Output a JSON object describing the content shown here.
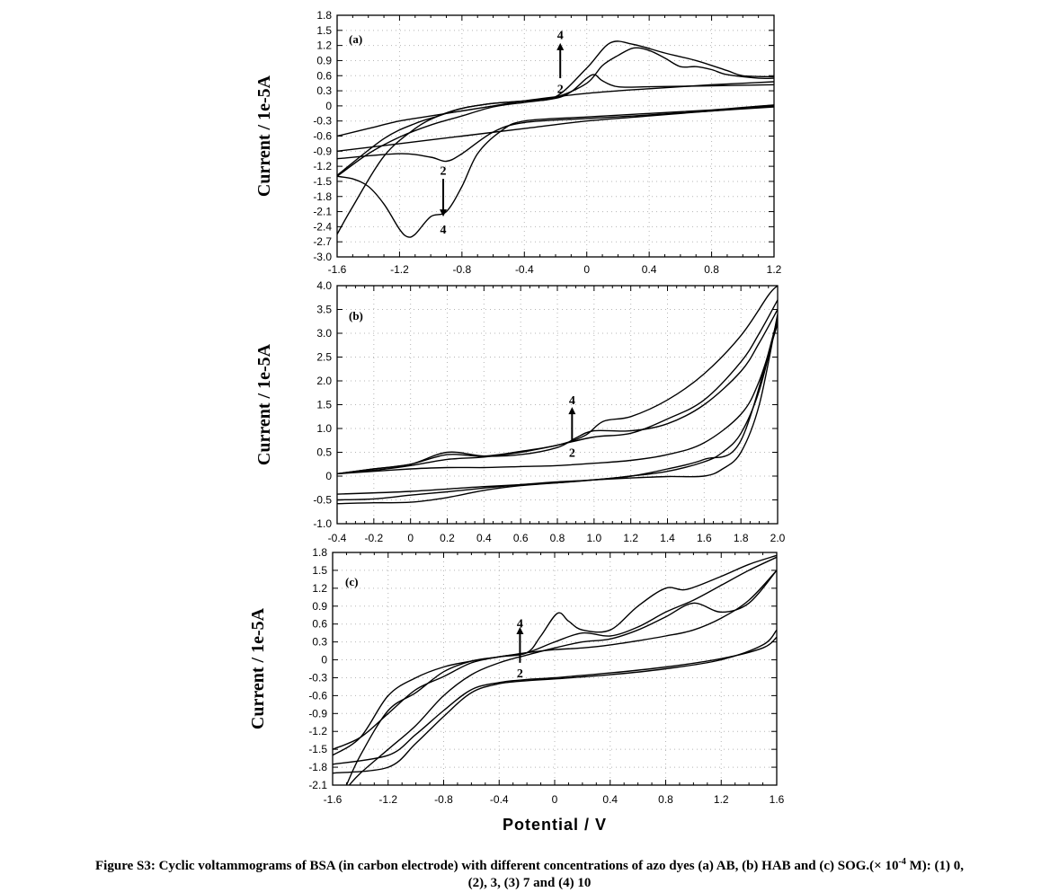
{
  "chart_data": [
    {
      "panel_label": "(a)",
      "type": "line",
      "ylabel": "Current / 1e-5A",
      "xlim": [
        -1.6,
        1.2
      ],
      "ylim": [
        -3.0,
        1.8
      ],
      "x_ticks": [
        -1.6,
        -1.2,
        -0.8,
        -0.4,
        0,
        0.4,
        0.8,
        1.2
      ],
      "x_tick_labels": [
        "-1.6",
        "-1.2",
        "-0.8",
        "-0.4",
        "0",
        "0.4",
        "0.8",
        "1.2"
      ],
      "y_ticks": [
        1.8,
        1.5,
        1.2,
        0.9,
        0.6,
        0.3,
        0,
        -0.3,
        -0.6,
        -0.9,
        -1.2,
        -1.5,
        -1.8,
        -2.1,
        -2.4,
        -2.7,
        -3.0
      ],
      "y_tick_labels": [
        "1.8",
        "1.5",
        "1.2",
        "0.9",
        "0.6",
        "0.3",
        "0",
        "-0.3",
        "-0.6",
        "-0.9",
        "-1.2",
        "-1.5",
        "-1.8",
        "-2.1",
        "-2.4",
        "-2.7",
        "-3.0"
      ],
      "grid": true,
      "annotations": [
        {
          "text": "4",
          "x": -0.17,
          "y": 1.42
        },
        {
          "text": "2",
          "x": -0.17,
          "y": 0.35
        },
        {
          "text": "2",
          "x": -0.92,
          "y": -1.28
        },
        {
          "text": "4",
          "x": -0.92,
          "y": -2.45
        }
      ],
      "arrows": [
        {
          "x": -0.17,
          "from": 0.55,
          "to": 1.25
        },
        {
          "x": -0.92,
          "from": -1.45,
          "to": -2.2
        }
      ],
      "series": [
        {
          "x": [
            -1.6,
            -1.4,
            -1.2,
            -1.0,
            -0.8,
            -0.6,
            -0.4,
            -0.2,
            0,
            0.2,
            0.4,
            0.6,
            0.8,
            1.0,
            1.2
          ],
          "y": [
            -0.6,
            -0.45,
            -0.3,
            -0.2,
            -0.1,
            0.0,
            0.1,
            0.18,
            0.25,
            0.3,
            0.34,
            0.38,
            0.42,
            0.45,
            0.48
          ]
        },
        {
          "x": [
            -1.6,
            -1.2,
            -0.8,
            -0.4,
            0,
            0.4,
            0.8,
            1.2
          ],
          "y": [
            -0.9,
            -0.75,
            -0.6,
            -0.45,
            -0.3,
            -0.2,
            -0.1,
            0.0
          ]
        },
        {
          "x": [
            -1.6,
            -1.4,
            -1.2,
            -1.0,
            -0.8,
            -0.6,
            -0.4,
            -0.2,
            -0.1,
            0,
            0.05,
            0.1,
            0.2,
            0.4,
            0.8,
            1.2
          ],
          "y": [
            -1.4,
            -0.95,
            -0.62,
            -0.38,
            -0.2,
            -0.02,
            0.07,
            0.15,
            0.28,
            0.55,
            0.62,
            0.5,
            0.38,
            0.38,
            0.4,
            0.42
          ]
        },
        {
          "x": [
            -1.6,
            -1.2,
            -1.0,
            -0.9,
            -0.8,
            -0.6,
            -0.4,
            0,
            0.4,
            0.8,
            1.2
          ],
          "y": [
            -1.05,
            -0.95,
            -1.02,
            -1.1,
            -0.95,
            -0.52,
            -0.33,
            -0.25,
            -0.18,
            -0.1,
            -0.02
          ]
        },
        {
          "x": [
            -1.6,
            -1.3,
            -1.1,
            -0.95,
            -0.8,
            -0.6,
            -0.4,
            -0.2,
            0,
            0.15,
            0.3,
            0.5,
            0.7,
            0.9,
            1.0,
            1.2
          ],
          "y": [
            -1.38,
            -0.65,
            -0.35,
            -0.2,
            -0.05,
            0.05,
            0.1,
            0.18,
            0.75,
            1.25,
            1.22,
            1.05,
            0.9,
            0.7,
            0.6,
            0.58
          ]
        },
        {
          "x": [
            -1.6,
            -1.5,
            -1.4,
            -1.3,
            -1.2,
            -1.15,
            -1.1,
            -1.0,
            -0.9,
            -0.8,
            -0.7,
            -0.55,
            -0.4,
            0,
            0.4,
            0.8,
            1.2
          ],
          "y": [
            -1.4,
            -1.45,
            -1.6,
            -1.95,
            -2.45,
            -2.6,
            -2.55,
            -2.2,
            -2.1,
            -1.6,
            -0.95,
            -0.5,
            -0.3,
            -0.22,
            -0.15,
            -0.08,
            0.02
          ]
        },
        {
          "x": [
            -1.6,
            -1.5,
            -1.3,
            -1.1,
            -0.95,
            -0.8,
            -0.6,
            -0.4,
            -0.2,
            0,
            0.1,
            0.2,
            0.3,
            0.4,
            0.5,
            0.6,
            0.7,
            0.8,
            0.9,
            1.1,
            1.2
          ],
          "y": [
            -2.55,
            -2.0,
            -1.0,
            -0.45,
            -0.2,
            -0.05,
            0.05,
            0.1,
            0.17,
            0.45,
            0.8,
            1.0,
            1.15,
            1.1,
            0.95,
            0.78,
            0.78,
            0.72,
            0.62,
            0.55,
            0.55
          ]
        }
      ]
    },
    {
      "panel_label": "(b)",
      "type": "line",
      "ylabel": "Current / 1e-5A",
      "xlim": [
        -0.4,
        2.0
      ],
      "ylim": [
        -1.0,
        4.0
      ],
      "x_ticks": [
        -0.4,
        -0.2,
        0,
        0.2,
        0.4,
        0.6,
        0.8,
        1.0,
        1.2,
        1.4,
        1.6,
        1.8,
        2.0
      ],
      "x_tick_labels": [
        "-0.4",
        "-0.2",
        "0",
        "0.2",
        "0.4",
        "0.6",
        "0.8",
        "1.0",
        "1.2",
        "1.4",
        "1.6",
        "1.8",
        "2.0"
      ],
      "y_ticks": [
        4.0,
        3.5,
        3.0,
        2.5,
        2.0,
        1.5,
        1.0,
        0.5,
        0,
        -0.5,
        -1.0
      ],
      "y_tick_labels": [
        "4.0",
        "3.5",
        "3.0",
        "2.5",
        "2.0",
        "1.5",
        "1.0",
        "0.5",
        "0",
        "-0.5",
        "-1.0"
      ],
      "grid": true,
      "annotations": [
        {
          "text": "4",
          "x": 0.88,
          "y": 1.6
        },
        {
          "text": "2",
          "x": 0.88,
          "y": 0.5
        }
      ],
      "arrows": [
        {
          "x": 0.88,
          "from": 0.75,
          "to": 1.45
        }
      ],
      "series": [
        {
          "x": [
            -0.4,
            -0.2,
            0,
            0.2,
            0.4,
            0.6,
            0.8,
            1.0,
            1.2,
            1.4,
            1.6,
            1.8,
            1.9,
            2.0
          ],
          "y": [
            0.05,
            0.1,
            0.15,
            0.18,
            0.18,
            0.2,
            0.22,
            0.27,
            0.33,
            0.45,
            0.7,
            1.3,
            2.0,
            3.2
          ]
        },
        {
          "x": [
            -0.4,
            -0.2,
            0,
            0.2,
            0.4,
            0.6,
            0.8,
            0.9,
            1.0,
            1.2,
            1.4,
            1.6,
            1.8,
            1.9,
            2.0
          ],
          "y": [
            0.05,
            0.15,
            0.25,
            0.5,
            0.42,
            0.45,
            0.6,
            0.8,
            0.95,
            0.95,
            1.1,
            1.5,
            2.2,
            2.8,
            3.5
          ]
        },
        {
          "x": [
            -0.4,
            -0.2,
            0,
            0.2,
            0.4,
            0.6,
            0.8,
            0.95,
            1.05,
            1.2,
            1.4,
            1.6,
            1.8,
            1.95,
            2.0
          ],
          "y": [
            0.05,
            0.15,
            0.25,
            0.45,
            0.42,
            0.52,
            0.65,
            0.85,
            1.15,
            1.25,
            1.6,
            2.15,
            2.95,
            3.8,
            4.0
          ]
        },
        {
          "x": [
            -0.4,
            -0.2,
            0,
            0.2,
            0.4,
            0.6,
            0.8,
            1.0,
            1.2,
            1.4,
            1.6,
            1.8,
            1.9,
            2.0
          ],
          "y": [
            0.05,
            0.12,
            0.22,
            0.35,
            0.4,
            0.5,
            0.65,
            0.82,
            0.9,
            1.2,
            1.6,
            2.4,
            3.0,
            3.7
          ]
        },
        {
          "x": [
            -0.4,
            -0.2,
            0,
            0.2,
            0.4,
            0.6,
            0.8,
            1.0,
            1.2,
            1.4,
            1.6,
            1.7,
            1.8,
            1.9,
            2.0
          ],
          "y": [
            -0.5,
            -0.48,
            -0.4,
            -0.33,
            -0.25,
            -0.18,
            -0.12,
            -0.08,
            0.0,
            0.1,
            0.3,
            0.5,
            0.9,
            1.8,
            3.3
          ]
        },
        {
          "x": [
            -0.4,
            -0.2,
            0,
            0.2,
            0.4,
            0.6,
            0.8,
            1.0,
            1.2,
            1.4,
            1.6,
            1.7,
            1.8,
            1.9,
            2.0
          ],
          "y": [
            -0.58,
            -0.56,
            -0.55,
            -0.45,
            -0.3,
            -0.2,
            -0.14,
            -0.08,
            -0.04,
            -0.01,
            0.0,
            0.15,
            0.5,
            1.5,
            3.4
          ]
        },
        {
          "x": [
            -0.4,
            0,
            0.4,
            0.8,
            1.0,
            1.2,
            1.4,
            1.6,
            1.8,
            2.0
          ],
          "y": [
            -0.38,
            -0.32,
            -0.22,
            -0.14,
            -0.08,
            0.0,
            0.15,
            0.35,
            0.75,
            3.3
          ]
        }
      ]
    },
    {
      "panel_label": "(c)",
      "type": "line",
      "ylabel": "Current / 1e-5A",
      "xlabel": "Potential / V",
      "xlim": [
        -1.6,
        1.6
      ],
      "ylim": [
        -2.1,
        1.8
      ],
      "x_ticks": [
        -1.6,
        -1.2,
        -0.8,
        -0.4,
        0,
        0.4,
        0.8,
        1.2,
        1.6
      ],
      "x_tick_labels": [
        "-1.6",
        "-1.2",
        "-0.8",
        "-0.4",
        "0",
        "0.4",
        "0.8",
        "1.2",
        "1.6"
      ],
      "y_ticks": [
        1.8,
        1.5,
        1.2,
        0.9,
        0.6,
        0.3,
        0,
        -0.3,
        -0.6,
        -0.9,
        -1.2,
        -1.5,
        -1.8,
        -2.1
      ],
      "y_tick_labels": [
        "1.8",
        "1.5",
        "1.2",
        "0.9",
        "0.6",
        "0.3",
        "0",
        "-0.3",
        "-0.6",
        "-0.9",
        "-1.2",
        "-1.5",
        "-1.8",
        "-2.1"
      ],
      "grid": true,
      "annotations": [
        {
          "text": "4",
          "x": -0.25,
          "y": 0.62
        },
        {
          "text": "2",
          "x": -0.25,
          "y": -0.22
        }
      ],
      "arrows": [
        {
          "x": -0.25,
          "from": -0.05,
          "to": 0.55
        }
      ],
      "series": [
        {
          "x": [
            -1.6,
            -1.4,
            -1.2,
            -1.0,
            -0.8,
            -0.6,
            -0.4,
            -0.2,
            0,
            0.2,
            0.4,
            0.6,
            0.8,
            1.0,
            1.2,
            1.4,
            1.6
          ],
          "y": [
            -1.6,
            -1.3,
            -0.6,
            -0.3,
            -0.12,
            -0.02,
            0.05,
            0.12,
            0.17,
            0.2,
            0.25,
            0.32,
            0.4,
            0.5,
            0.7,
            1.0,
            1.5
          ]
        },
        {
          "x": [
            -1.6,
            -1.2,
            -1.0,
            -0.8,
            -0.6,
            -0.4,
            -0.2,
            0,
            0.4,
            0.8,
            1.2,
            1.5,
            1.6
          ],
          "y": [
            -1.9,
            -1.8,
            -1.4,
            -0.95,
            -0.55,
            -0.4,
            -0.35,
            -0.32,
            -0.25,
            -0.15,
            0.0,
            0.25,
            0.5
          ]
        },
        {
          "x": [
            -1.6,
            -1.2,
            -1.0,
            -0.8,
            -0.6,
            -0.4,
            -0.2,
            0,
            0.4,
            0.8,
            1.2,
            1.5,
            1.6
          ],
          "y": [
            -1.75,
            -1.6,
            -1.25,
            -0.85,
            -0.5,
            -0.38,
            -0.33,
            -0.3,
            -0.22,
            -0.12,
            0.02,
            0.2,
            0.38
          ]
        },
        {
          "x": [
            -1.5,
            -1.4,
            -1.2,
            -1.0,
            -0.8,
            -0.6,
            -0.4,
            -0.2,
            -0.1,
            0.02,
            0.1,
            0.2,
            0.4,
            0.6,
            0.8,
            0.95,
            1.2,
            1.4,
            1.6
          ],
          "y": [
            -2.1,
            -1.6,
            -0.85,
            -0.55,
            -0.2,
            -0.02,
            0.05,
            0.12,
            0.4,
            0.78,
            0.65,
            0.5,
            0.5,
            0.9,
            1.2,
            1.18,
            1.4,
            1.6,
            1.75
          ]
        },
        {
          "x": [
            -1.6,
            -1.4,
            -1.2,
            -1.0,
            -0.8,
            -0.6,
            -0.4,
            -0.2,
            0,
            0.2,
            0.4,
            0.6,
            0.8,
            1.0,
            1.2,
            1.4,
            1.6
          ],
          "y": [
            -1.5,
            -1.3,
            -0.9,
            -0.5,
            -0.28,
            -0.05,
            0.05,
            0.12,
            0.3,
            0.45,
            0.4,
            0.55,
            0.8,
            1.0,
            1.25,
            1.5,
            1.72
          ]
        },
        {
          "x": [
            -1.48,
            -1.4,
            -1.2,
            -1.0,
            -0.8,
            -0.6,
            -0.4,
            -0.2,
            0,
            0.2,
            0.4,
            0.6,
            0.8,
            1.0,
            1.2,
            1.4,
            1.6
          ],
          "y": [
            -2.1,
            -1.9,
            -1.5,
            -1.1,
            -0.6,
            -0.25,
            -0.05,
            0.08,
            0.2,
            0.3,
            0.35,
            0.5,
            0.72,
            0.95,
            0.8,
            0.95,
            1.5
          ]
        }
      ]
    }
  ],
  "caption": {
    "main": "Figure S3: Cyclic voltammograms of BSA (in carbon electrode) with different concentrations of azo dyes (a) AB, (b) HAB and (c) SOG.(× 10",
    "exponent": "-4",
    "after_exponent": " M): (1) 0,",
    "line2": "(2), 3, (3) 7 and (4) 10"
  }
}
